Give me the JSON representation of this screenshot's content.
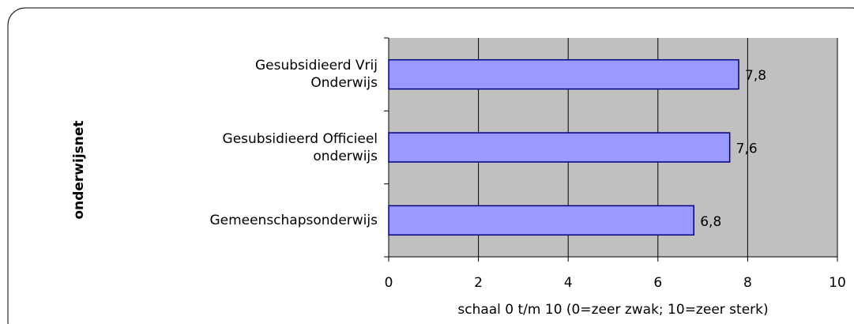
{
  "chart_data": {
    "type": "barh",
    "categories": [
      "Gesubsidieerd Vrij\nOnderwijs",
      "Gesubsidieerd Officieel\nonderwijs",
      "Gemeenschapsonderwijs"
    ],
    "values": [
      7.8,
      7.6,
      6.8
    ],
    "value_labels": [
      "7,8",
      "7,6",
      "6,8"
    ],
    "color": "#9999ff",
    "xlim": [
      0,
      10
    ],
    "xticks": [
      0,
      2,
      4,
      6,
      8,
      10
    ],
    "xlabel": "schaal 0 t/m 10 (0=zeer zwak; 10=zeer sterk)",
    "ylabel": "onderwijsnet",
    "grid": true
  }
}
